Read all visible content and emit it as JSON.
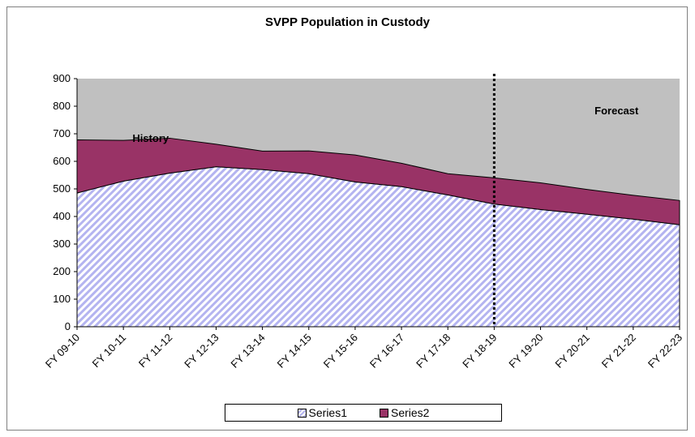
{
  "chart_data": {
    "type": "area",
    "stacked": true,
    "title": "SVPP Population in Custody",
    "xlabel": "",
    "ylabel": "",
    "categories": [
      "FY 09-10",
      "FY 10-11",
      "FY 11-12",
      "FY 12-13",
      "FY 13-14",
      "FY 14-15",
      "FY 15-16",
      "FY 16-17",
      "FY 17-18",
      "FY 18-19",
      "FY 19-20",
      "FY 20-21",
      "FY 21-22",
      "FY 22-23"
    ],
    "ylim": [
      0,
      900
    ],
    "yticks": [
      0,
      100,
      200,
      300,
      400,
      500,
      600,
      700,
      800,
      900
    ],
    "grid": false,
    "series": [
      {
        "name": "Series1",
        "color": "#b4b4f0",
        "pattern": "diagonal-hatch",
        "values": [
          485,
          528,
          557,
          580,
          570,
          555,
          525,
          508,
          478,
          445,
          425,
          408,
          390,
          370
        ]
      },
      {
        "name": "Series2",
        "color": "#993366",
        "values": [
          193,
          148,
          127,
          82,
          67,
          83,
          98,
          85,
          77,
          95,
          97,
          90,
          87,
          88
        ]
      }
    ],
    "annotations": [
      {
        "text": "History"
      },
      {
        "text": "Forecast"
      }
    ],
    "divider_after_category": "FY 18-19",
    "plot_background": "#c0c0c0",
    "legend_position": "bottom"
  }
}
